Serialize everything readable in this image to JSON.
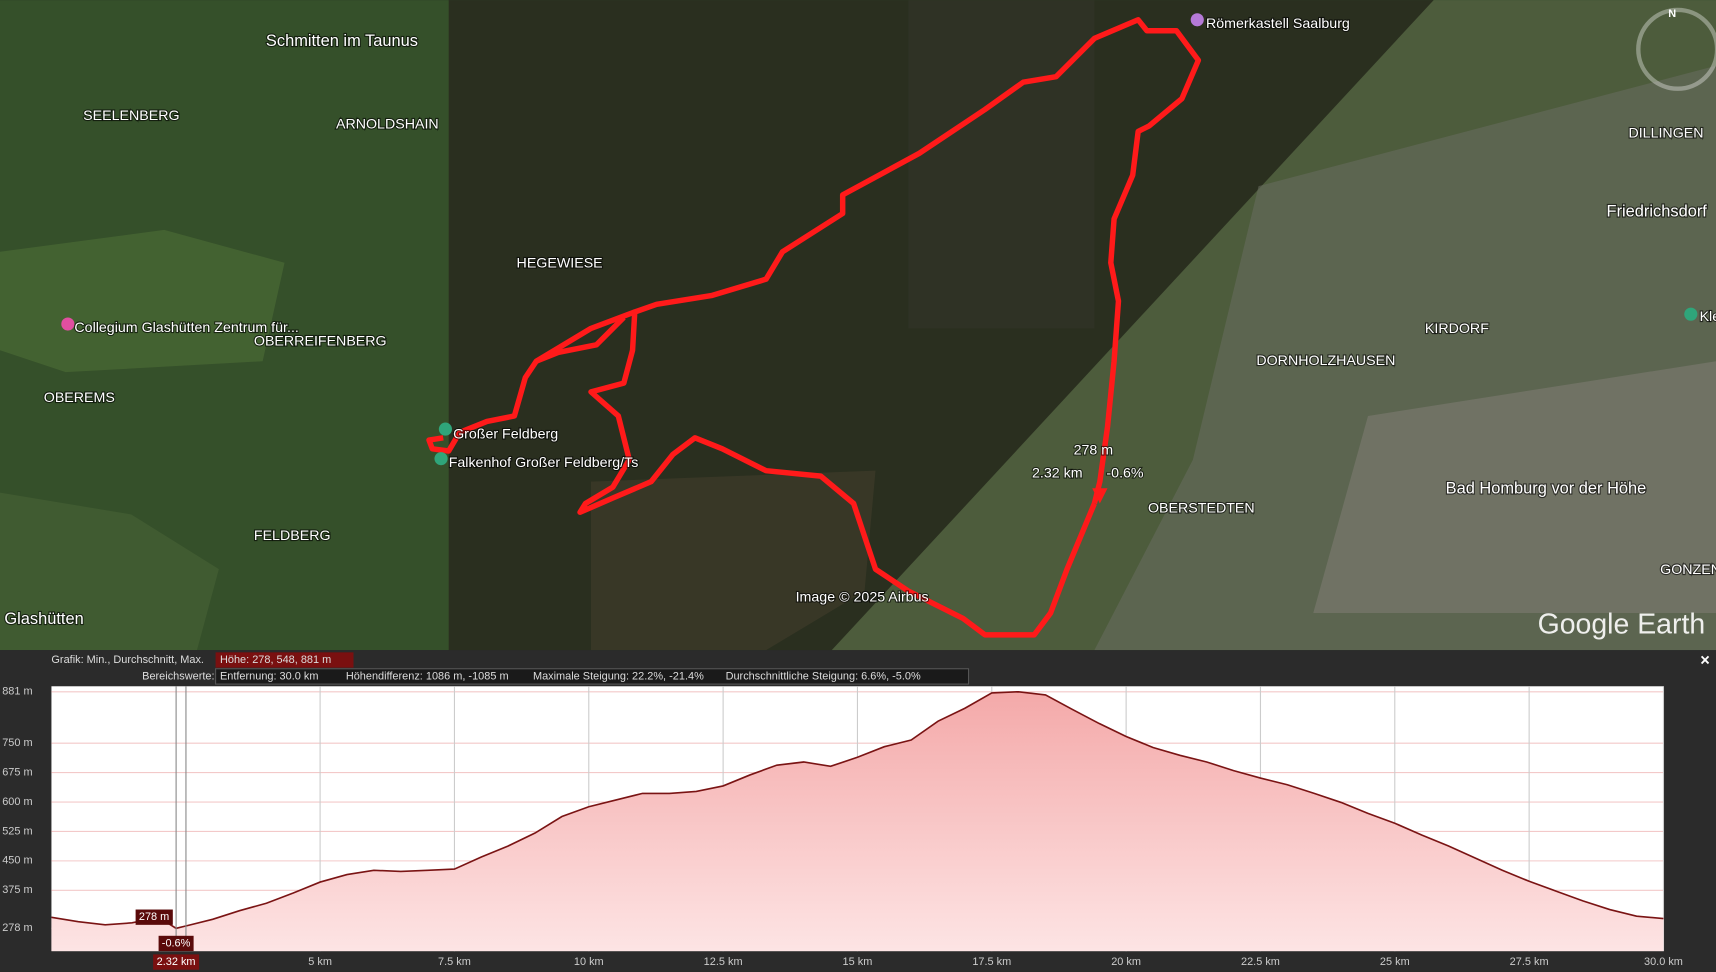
{
  "map": {
    "labels": [
      "Schmitten im Taunus",
      "SEELENBERG",
      "ARNOLDSHAIN",
      "HEGEWIESE",
      "Collegium Glashütten Zentrum für...",
      "OBERREIFENBERG",
      "OBEREMS",
      "FELDBERG",
      "Glashütten",
      "DILLINGEN",
      "Friedrichsdorf",
      "KIRDORF",
      "DORNHOLZHAUSEN",
      "OBERSTEDTEN",
      "Bad Homburg vor der Höhe",
      "GONZEN",
      "Kle"
    ],
    "places": [
      "Großer Feldberg",
      "Falkenhof Großer Feldberg/Ts",
      "Römerkastell Saalburg"
    ],
    "attribution": "Image © 2025 Airbus",
    "logo": "Google Earth",
    "compass": "N",
    "cursor": {
      "elevation": "278 m",
      "distance": "2.32 km",
      "grade": "-0.6%"
    }
  },
  "profile_header": {
    "graph_label": "Grafik: Min., Durchschnitt, Max.",
    "height": "Höhe: 278, 548, 881 m",
    "range_label": "Bereichswerte:",
    "distance": "Entfernung: 30.0 km",
    "height_diff": "Höhendifferenz: 1086 m, -1085 m",
    "max_slope": "Maximale Steigung: 22.2%, -21.4%",
    "avg_slope": "Durchschnittliche Steigung: 6.6%, -5.0%",
    "close": "×"
  },
  "chart_data": {
    "type": "area",
    "color": "#7a1414",
    "fill": "#f7c6c6",
    "x": [
      0,
      0.5,
      1,
      1.5,
      2,
      2.32,
      2.5,
      3,
      3.5,
      4,
      4.5,
      5,
      5.5,
      6,
      6.5,
      7,
      7.5,
      8,
      8.5,
      9,
      9.5,
      10,
      10.5,
      11,
      11.5,
      12,
      12.5,
      13,
      13.5,
      14,
      14.5,
      15,
      15.5,
      16,
      16.5,
      17,
      17.5,
      18,
      18.5,
      19,
      19.5,
      20,
      20.5,
      21,
      21.5,
      22,
      22.5,
      23,
      23.5,
      24,
      24.5,
      25,
      25.5,
      26,
      26.5,
      27,
      27.5,
      28,
      28.5,
      29,
      29.5,
      30
    ],
    "values": [
      306,
      295,
      287,
      292,
      306,
      278,
      284,
      301,
      323,
      342,
      368,
      396,
      415,
      426,
      423,
      426,
      429,
      460,
      488,
      521,
      563,
      588,
      605,
      622,
      622,
      627,
      641,
      669,
      694,
      702,
      691,
      714,
      741,
      758,
      806,
      839,
      878,
      881,
      873,
      836,
      800,
      767,
      739,
      719,
      702,
      680,
      661,
      644,
      622,
      599,
      571,
      546,
      516,
      488,
      457,
      426,
      398,
      373,
      348,
      326,
      309,
      303
    ],
    "xlim": [
      0,
      30
    ],
    "ylim": [
      220,
      895
    ],
    "xticks": [
      {
        "value": 5,
        "label": "5 km"
      },
      {
        "value": 7.5,
        "label": "7.5 km"
      },
      {
        "value": 10,
        "label": "10 km"
      },
      {
        "value": 12.5,
        "label": "12.5 km"
      },
      {
        "value": 15,
        "label": "15 km"
      },
      {
        "value": 17.5,
        "label": "17.5 km"
      },
      {
        "value": 20,
        "label": "20 km"
      },
      {
        "value": 22.5,
        "label": "22.5 km"
      },
      {
        "value": 25,
        "label": "25 km"
      },
      {
        "value": 27.5,
        "label": "27.5 km"
      },
      {
        "value": 30,
        "label": "30.0 km"
      }
    ],
    "yticks": [
      {
        "value": 881,
        "label": "881 m"
      },
      {
        "value": 750,
        "label": "750 m"
      },
      {
        "value": 675,
        "label": "675 m"
      },
      {
        "value": 600,
        "label": "600 m"
      },
      {
        "value": 525,
        "label": "525 m"
      },
      {
        "value": 450,
        "label": "450 m"
      },
      {
        "value": 375,
        "label": "375 m"
      },
      {
        "value": 278,
        "label": "278 m"
      }
    ],
    "grid": true,
    "cursor_x": 2.32
  }
}
